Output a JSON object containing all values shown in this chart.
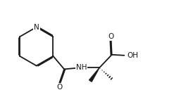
{
  "bg_color": "#ffffff",
  "line_color": "#1a1a1a",
  "lw": 1.3,
  "dbo": 0.012,
  "figsize": [
    2.64,
    1.38
  ],
  "dpi": 100,
  "xlim": [
    0,
    2.64
  ],
  "ylim": [
    0,
    1.38
  ]
}
